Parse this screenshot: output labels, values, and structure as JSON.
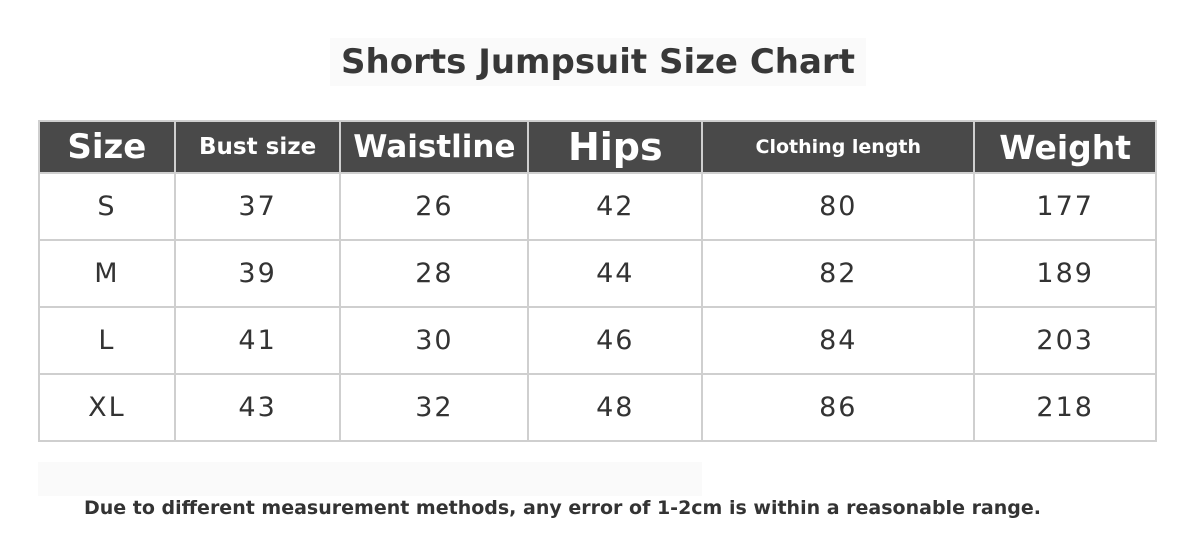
{
  "title": "Shorts Jumpsuit Size Chart",
  "table": {
    "headers": [
      "Size",
      "Bust size",
      "Waistline",
      "Hips",
      "Clothing length",
      "Weight"
    ],
    "rows": [
      [
        "S",
        "37",
        "26",
        "42",
        "80",
        "177"
      ],
      [
        "M",
        "39",
        "28",
        "44",
        "82",
        "189"
      ],
      [
        "L",
        "41",
        "30",
        "46",
        "84",
        "203"
      ],
      [
        "XL",
        "43",
        "32",
        "48",
        "86",
        "218"
      ]
    ]
  },
  "footer_note": "Due to different measurement methods, any error of 1-2cm is within a reasonable range.",
  "colors": {
    "header_bg": "#494949",
    "header_text": "#ffffff",
    "border": "#cfcfcf"
  }
}
